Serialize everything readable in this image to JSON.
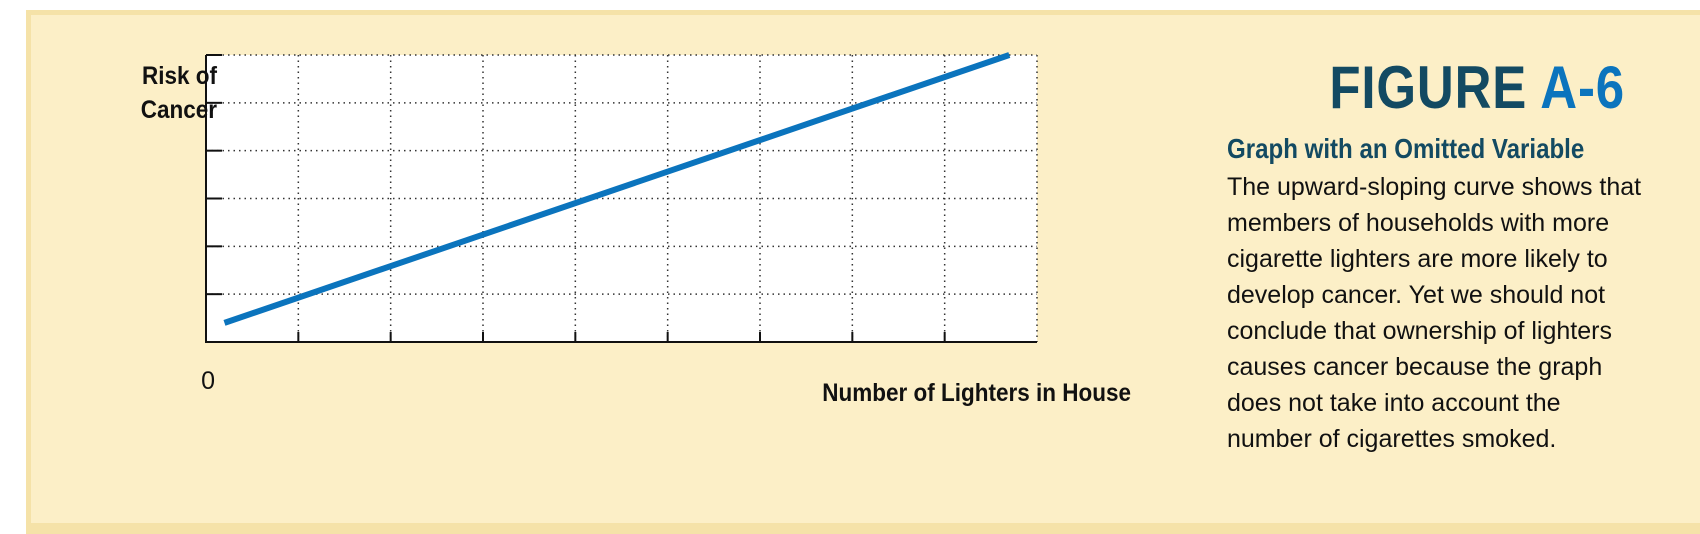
{
  "figure": {
    "label_word": "FIGURE",
    "label_number": "A-6",
    "caption_title": "Graph with an Omitted Variable",
    "caption_body": "The upward-sloping curve shows that members of households with more cigarette lighters are more likely to develop cancer. Yet we should not conclude that ownership of lighters causes cancer because the graph does not take into account the number of cigarettes smoked."
  },
  "colors": {
    "background": "#fcefc7",
    "shadow": "#f5e2a8",
    "line": "#0b74bd",
    "title_dark": "#134a62",
    "title_accent": "#0b74bd"
  },
  "chart_data": {
    "type": "line",
    "title": "",
    "xlabel": "Number of Lighters in House",
    "ylabel": "Risk of Cancer",
    "origin_label": "0",
    "xlim": [
      0,
      9
    ],
    "ylim": [
      0,
      6
    ],
    "x_ticks": [
      1,
      2,
      3,
      4,
      5,
      6,
      7,
      8
    ],
    "y_ticks": [
      1,
      2,
      3,
      4,
      5,
      6
    ],
    "grid": true,
    "grid_style": "dotted",
    "series": [
      {
        "x": [
          0.2,
          8.7
        ],
        "y": [
          0.4,
          6.0
        ]
      }
    ]
  }
}
